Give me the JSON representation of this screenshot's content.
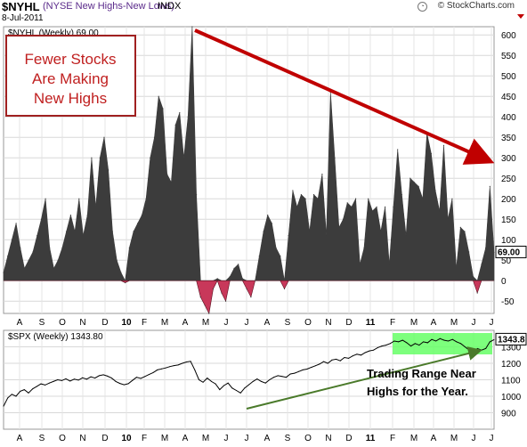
{
  "header": {
    "symbol": "$NYHL",
    "name": "(NYSE New Highs-New Lows)",
    "exchange": "INDX",
    "date": "8-Jul-2011",
    "copyright": "© StockCharts.com"
  },
  "colors": {
    "area_fill": "#3c3c3c",
    "negative_fill": "#c8385a",
    "spx_line": "#000000",
    "trend_arrow": "#c00000",
    "trend_line": "#4a7a2a",
    "range_box": "#66ff66",
    "callout_border": "#a02020",
    "callout_text": "#c02020"
  },
  "annotations": {
    "callout": [
      "Fewer Stocks",
      "Are Making",
      "New Highs"
    ],
    "range_note": [
      "Trading Range Near",
      "Highs for the Year."
    ]
  },
  "chart_data": [
    {
      "type": "area",
      "legend": "$NYHL (Weekly) 69.00",
      "last_value_label": "69.00",
      "ylim": [
        -80,
        620
      ],
      "yticks": [
        -50,
        0,
        50,
        100,
        150,
        200,
        250,
        300,
        350,
        400,
        450,
        500,
        550,
        600
      ],
      "grid": true,
      "x_labels": [
        "A",
        "S",
        "O",
        "N",
        "D",
        "10",
        "F",
        "M",
        "A",
        "M",
        "J",
        "J",
        "A",
        "S",
        "O",
        "N",
        "D",
        "11",
        "F",
        "M",
        "A",
        "M",
        "J",
        "J"
      ],
      "values": [
        20,
        60,
        100,
        140,
        80,
        30,
        50,
        70,
        110,
        150,
        200,
        80,
        30,
        50,
        80,
        120,
        160,
        120,
        200,
        110,
        160,
        300,
        180,
        300,
        350,
        270,
        120,
        50,
        20,
        -5,
        80,
        120,
        140,
        160,
        200,
        300,
        350,
        450,
        420,
        260,
        240,
        380,
        410,
        300,
        400,
        620,
        210,
        -40,
        -60,
        -80,
        -20,
        5,
        -30,
        -50,
        10,
        30,
        40,
        5,
        -20,
        -40,
        0,
        60,
        120,
        160,
        140,
        80,
        60,
        -20,
        110,
        220,
        180,
        210,
        200,
        120,
        210,
        200,
        260,
        110,
        460,
        300,
        130,
        150,
        190,
        180,
        200,
        40,
        80,
        200,
        170,
        180,
        120,
        180,
        40,
        180,
        320,
        210,
        110,
        250,
        240,
        230,
        200,
        360,
        310,
        220,
        170,
        330,
        150,
        200,
        30,
        130,
        120,
        70,
        10,
        -30,
        40,
        80,
        230,
        69
      ]
    },
    {
      "type": "line",
      "legend": "$SPX (Weekly) 1343.80",
      "last_value_label": "1343.8",
      "ylim": [
        800,
        1400
      ],
      "yticks": [
        900,
        1000,
        1100,
        1200,
        1300
      ],
      "grid": true,
      "x_labels": [
        "A",
        "S",
        "O",
        "N",
        "D",
        "10",
        "F",
        "M",
        "A",
        "M",
        "J",
        "J",
        "A",
        "S",
        "O",
        "N",
        "D",
        "11",
        "F",
        "M",
        "A",
        "M",
        "J",
        "J"
      ],
      "values": [
        940,
        990,
        1012,
        1000,
        1030,
        1040,
        1020,
        1045,
        1060,
        1075,
        1068,
        1080,
        1090,
        1100,
        1095,
        1106,
        1092,
        1104,
        1098,
        1112,
        1104,
        1118,
        1110,
        1125,
        1130,
        1122,
        1110,
        1090,
        1078,
        1070,
        1076,
        1096,
        1115,
        1108,
        1120,
        1132,
        1144,
        1160,
        1166,
        1172,
        1180,
        1186,
        1190,
        1200,
        1208,
        1212,
        1160,
        1100,
        1085,
        1110,
        1090,
        1075,
        1040,
        1065,
        1080,
        1050,
        1035,
        1020,
        1050,
        1070,
        1090,
        1105,
        1090,
        1080,
        1100,
        1115,
        1125,
        1120,
        1115,
        1135,
        1140,
        1150,
        1160,
        1165,
        1175,
        1185,
        1195,
        1210,
        1200,
        1220,
        1225,
        1215,
        1235,
        1230,
        1245,
        1255,
        1250,
        1265,
        1275,
        1280,
        1295,
        1305,
        1310,
        1320,
        1335,
        1330,
        1340,
        1325,
        1305,
        1320,
        1310,
        1330,
        1325,
        1345,
        1335,
        1350,
        1340,
        1335,
        1345,
        1330,
        1320,
        1300,
        1280,
        1270,
        1290,
        1280,
        1290,
        1330,
        1343.8
      ]
    }
  ]
}
